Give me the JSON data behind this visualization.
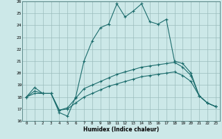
{
  "title": "",
  "xlabel": "Humidex (Indice chaleur)",
  "xlim": [
    -0.5,
    23.5
  ],
  "ylim": [
    16,
    26
  ],
  "yticks": [
    16,
    17,
    18,
    19,
    20,
    21,
    22,
    23,
    24,
    25,
    26
  ],
  "xticks": [
    0,
    1,
    2,
    3,
    4,
    5,
    6,
    7,
    8,
    9,
    10,
    11,
    12,
    13,
    14,
    15,
    16,
    17,
    18,
    19,
    20,
    21,
    22,
    23
  ],
  "bg_color": "#cce8e8",
  "grid_color": "#9bbcbc",
  "line_color": "#1a6b6b",
  "line1_x": [
    0,
    1,
    2,
    3,
    4,
    5,
    6,
    7,
    8,
    9,
    10,
    11,
    12,
    13,
    14,
    15,
    16,
    17,
    18,
    19,
    20,
    21,
    22,
    23
  ],
  "line1_y": [
    18.0,
    18.8,
    18.3,
    18.3,
    16.7,
    16.4,
    18.0,
    21.0,
    22.7,
    23.8,
    24.1,
    25.8,
    24.7,
    25.2,
    25.8,
    24.3,
    24.1,
    24.5,
    21.0,
    20.8,
    20.0,
    18.1,
    17.5,
    17.2
  ],
  "line2_x": [
    0,
    1,
    2,
    3,
    4,
    5,
    6,
    7,
    8,
    9,
    10,
    11,
    12,
    13,
    14,
    15,
    16,
    17,
    18,
    19,
    20,
    21,
    22,
    23
  ],
  "line2_y": [
    18.0,
    18.5,
    18.3,
    18.3,
    16.9,
    17.1,
    17.9,
    18.7,
    19.0,
    19.3,
    19.6,
    19.9,
    20.1,
    20.3,
    20.5,
    20.6,
    20.7,
    20.8,
    20.9,
    20.5,
    19.8,
    18.1,
    17.5,
    17.2
  ],
  "line3_x": [
    0,
    1,
    2,
    3,
    4,
    5,
    6,
    7,
    8,
    9,
    10,
    11,
    12,
    13,
    14,
    15,
    16,
    17,
    18,
    19,
    20,
    21,
    22,
    23
  ],
  "line3_y": [
    18.0,
    18.3,
    18.3,
    18.3,
    16.9,
    17.0,
    17.5,
    18.0,
    18.3,
    18.6,
    18.9,
    19.1,
    19.3,
    19.5,
    19.7,
    19.8,
    19.9,
    20.0,
    20.1,
    19.8,
    19.3,
    18.1,
    17.5,
    17.2
  ]
}
